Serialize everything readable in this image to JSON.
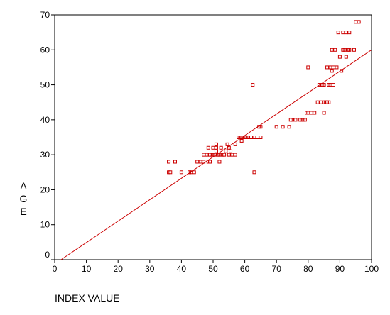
{
  "chart_data": {
    "type": "scatter",
    "title": "",
    "xlabel": "INDEX VALUE",
    "ylabel": "AGE",
    "xlim": [
      0,
      100
    ],
    "ylim": [
      0,
      70
    ],
    "x_ticks": [
      0,
      10,
      20,
      30,
      40,
      50,
      60,
      70,
      80,
      90,
      100
    ],
    "y_ticks": [
      0,
      10,
      20,
      30,
      40,
      50,
      60,
      70
    ],
    "x_tick_labels": [
      "0",
      "10",
      "20",
      "30",
      "40",
      "50",
      "60",
      "70",
      "80",
      "90",
      "100"
    ],
    "y_tick_labels": [
      "0",
      "10",
      "20",
      "30",
      "40",
      "50",
      "60",
      "70"
    ],
    "grid": false,
    "legend": "none",
    "marker": "hollow-square",
    "colors": {
      "points": "#cc0000",
      "fit_line": "#cc0000",
      "axis": "#000000",
      "background": "#ffffff"
    },
    "fit_line": {
      "x": [
        2,
        100
      ],
      "y": [
        0,
        60
      ]
    },
    "series": [
      {
        "points": [
          [
            36,
            28
          ],
          [
            36,
            25
          ],
          [
            36.5,
            25
          ],
          [
            38,
            28
          ],
          [
            40,
            25
          ],
          [
            42.5,
            25
          ],
          [
            43,
            25
          ],
          [
            44,
            25
          ],
          [
            45,
            28
          ],
          [
            46,
            28
          ],
          [
            47,
            28
          ],
          [
            47,
            30
          ],
          [
            48,
            30
          ],
          [
            48.5,
            32
          ],
          [
            48.5,
            28
          ],
          [
            49,
            28
          ],
          [
            49,
            30
          ],
          [
            49.5,
            30
          ],
          [
            50,
            30
          ],
          [
            50,
            32
          ],
          [
            50.5,
            30
          ],
          [
            51,
            32
          ],
          [
            51,
            33
          ],
          [
            51,
            31
          ],
          [
            51.5,
            30
          ],
          [
            52,
            30
          ],
          [
            52,
            28
          ],
          [
            52.5,
            32
          ],
          [
            53,
            30
          ],
          [
            53.5,
            30
          ],
          [
            54,
            31
          ],
          [
            54.5,
            33
          ],
          [
            55,
            30
          ],
          [
            55,
            32
          ],
          [
            55.5,
            31
          ],
          [
            56,
            30
          ],
          [
            57,
            30
          ],
          [
            57,
            33
          ],
          [
            58,
            35
          ],
          [
            58,
            35
          ],
          [
            58.5,
            35
          ],
          [
            59,
            34
          ],
          [
            59,
            35
          ],
          [
            60,
            35
          ],
          [
            60.5,
            35
          ],
          [
            61,
            35
          ],
          [
            62,
            35
          ],
          [
            62.5,
            50
          ],
          [
            63,
            25
          ],
          [
            63,
            35
          ],
          [
            64,
            35
          ],
          [
            64.5,
            38
          ],
          [
            65,
            38
          ],
          [
            65,
            35
          ],
          [
            70,
            38
          ],
          [
            72,
            38
          ],
          [
            74,
            38
          ],
          [
            74.5,
            40
          ],
          [
            75,
            40
          ],
          [
            76,
            40
          ],
          [
            77.5,
            40
          ],
          [
            78,
            40
          ],
          [
            78.5,
            40
          ],
          [
            79,
            40
          ],
          [
            79.5,
            42
          ],
          [
            80,
            42
          ],
          [
            80,
            55
          ],
          [
            81,
            42
          ],
          [
            82,
            42
          ],
          [
            83,
            45
          ],
          [
            83.5,
            50
          ],
          [
            84,
            45
          ],
          [
            84.5,
            50
          ],
          [
            85,
            50
          ],
          [
            85,
            45
          ],
          [
            85,
            42
          ],
          [
            85.5,
            45
          ],
          [
            86,
            45
          ],
          [
            86,
            55
          ],
          [
            86.5,
            45
          ],
          [
            86.5,
            50
          ],
          [
            87,
            55
          ],
          [
            87,
            50
          ],
          [
            87.5,
            54
          ],
          [
            87.5,
            60
          ],
          [
            88,
            50
          ],
          [
            88,
            55
          ],
          [
            88.5,
            60
          ],
          [
            89,
            55
          ],
          [
            89.5,
            65
          ],
          [
            90,
            58
          ],
          [
            90.5,
            54
          ],
          [
            91,
            60
          ],
          [
            91,
            65
          ],
          [
            91.5,
            60
          ],
          [
            92,
            65
          ],
          [
            92,
            58
          ],
          [
            92.5,
            60
          ],
          [
            93,
            65
          ],
          [
            93,
            60
          ],
          [
            94.5,
            60
          ],
          [
            95,
            68
          ],
          [
            96,
            68
          ]
        ]
      }
    ]
  }
}
